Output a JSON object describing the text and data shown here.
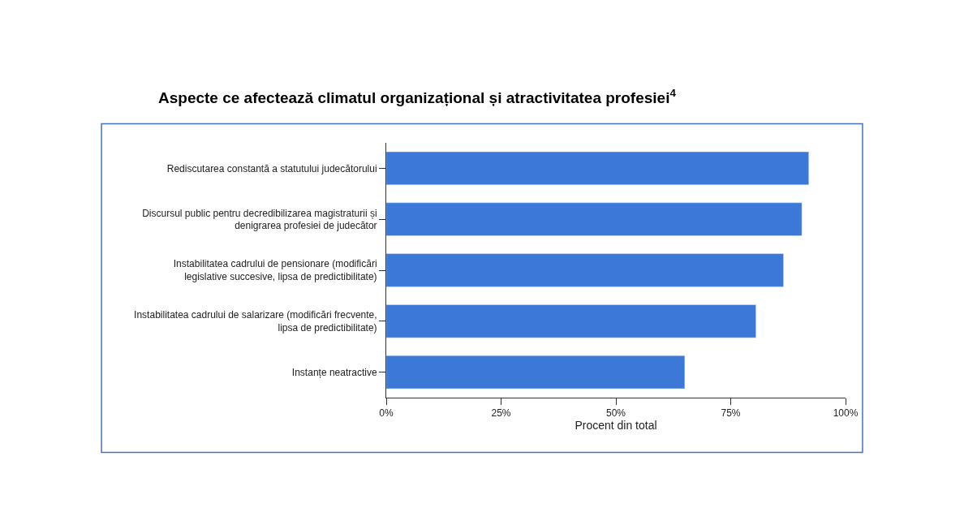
{
  "chart_data": {
    "type": "bar",
    "orientation": "horizontal",
    "title": "Aspecte ce afectează climatul organizațional și atractivitatea profesiei$^{4}$",
    "xlabel": "Procent din total",
    "categories": [
      "Rediscutarea constantă a statutului judecătorului",
      "Discursul public pentru decredibilizarea magistraturii și\ndenigrarea profesiei de judecător",
      "Instabilitatea cadrului de pensionare (modificări\nlegislative succesive, lipsa de predictibilitate)",
      "Instabilitatea cadrului de salarizare (modificări frecvente,\nlipsa de predictibilitate)",
      "Instanțe neatractive"
    ],
    "values": [
      92,
      90.5,
      86.5,
      80.5,
      65
    ],
    "color": "#3c78d8",
    "xlim": [
      0,
      100
    ],
    "xticks": [
      {
        "value": 0,
        "label": "0%"
      },
      {
        "value": 25,
        "label": "25%"
      },
      {
        "value": 50,
        "label": "50%"
      },
      {
        "value": 75,
        "label": "75%"
      },
      {
        "value": 100,
        "label": "100%"
      }
    ]
  }
}
